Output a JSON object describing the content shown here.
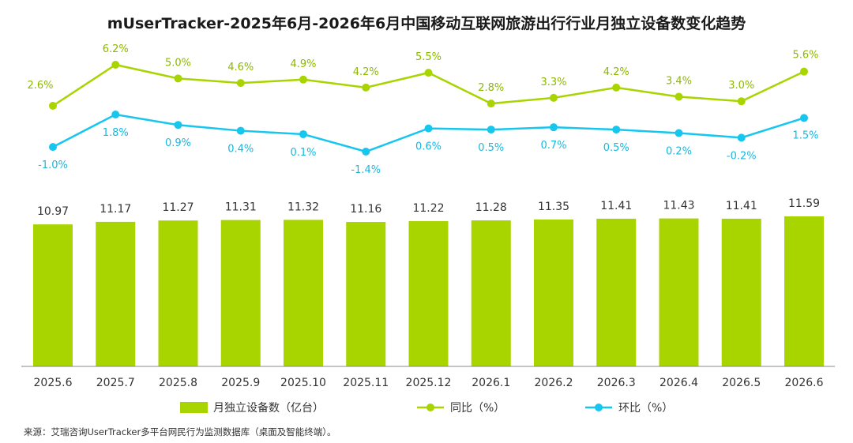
{
  "title": "mUserTracker-2025年6月-2026年6月中国移动互联网旅游出行行业月独立设备数变化趋势",
  "source": "来源：艾瑞咨询UserTracker多平台网民行为监测数据库（桌面及智能终端）。",
  "colors": {
    "bar": "#a8d400",
    "yoy": "#a8d400",
    "mom": "#17c6ef",
    "yoy_text": "#8db800",
    "mom_text": "#17b8e0",
    "axis": "#888888"
  },
  "legend": {
    "bar": "月独立设备数（亿台）",
    "yoy": "同比（%）",
    "mom": "环比（%）"
  },
  "chart_data": {
    "type": "bar",
    "categories": [
      "2025.6",
      "2025.7",
      "2025.8",
      "2025.9",
      "2025.10",
      "2025.11",
      "2025.12",
      "2026.1",
      "2026.2",
      "2026.3",
      "2026.4",
      "2026.5",
      "2026.6"
    ],
    "series": [
      {
        "name": "月独立设备数（亿台）",
        "type": "bar",
        "values": [
          10.97,
          11.17,
          11.27,
          11.31,
          11.32,
          11.16,
          11.22,
          11.28,
          11.35,
          11.41,
          11.43,
          11.41,
          11.59
        ],
        "labels": [
          "10.97",
          "11.17",
          "11.27",
          "11.31",
          "11.32",
          "11.16",
          "11.22",
          "11.28",
          "11.35",
          "11.41",
          "11.43",
          "11.41",
          "11.59"
        ]
      },
      {
        "name": "同比（%）",
        "type": "line",
        "values": [
          2.6,
          6.2,
          5.0,
          4.6,
          4.9,
          4.2,
          5.5,
          2.8,
          3.3,
          4.2,
          3.4,
          3.0,
          5.6
        ],
        "labels": [
          "2.6%",
          "6.2%",
          "5.0%",
          "4.6%",
          "4.9%",
          "4.2%",
          "5.5%",
          "2.8%",
          "3.3%",
          "4.2%",
          "3.4%",
          "3.0%",
          "5.6%"
        ]
      },
      {
        "name": "环比（%）",
        "type": "line",
        "values": [
          -1.0,
          1.8,
          0.9,
          0.4,
          0.1,
          -1.4,
          0.6,
          0.5,
          0.7,
          0.5,
          0.2,
          -0.2,
          1.5
        ],
        "labels": [
          "-1.0%",
          "1.8%",
          "0.9%",
          "0.4%",
          "0.1%",
          "-1.4%",
          "0.6%",
          "0.5%",
          "0.7%",
          "0.5%",
          "0.2%",
          "-0.2%",
          "1.5%"
        ]
      }
    ],
    "grid": false,
    "legend_position": "bottom"
  }
}
